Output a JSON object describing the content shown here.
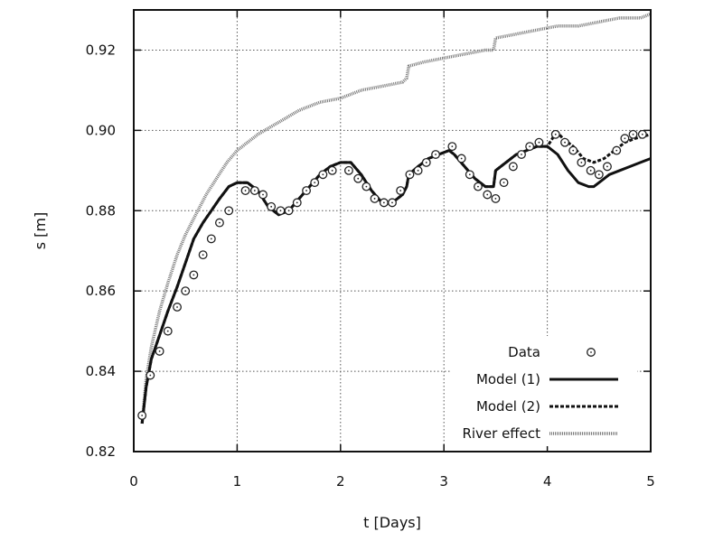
{
  "chart_data": {
    "type": "line",
    "title": "",
    "xlabel": "t [Days]",
    "ylabel": "s [m]",
    "xlim": [
      0,
      5
    ],
    "ylim": [
      0.82,
      0.93
    ],
    "xticks": [
      0,
      1,
      2,
      3,
      4,
      5
    ],
    "xtick_labels": [
      "0",
      "1",
      "2",
      "3",
      "4",
      "5"
    ],
    "yticks": [
      0.82,
      0.84,
      0.86,
      0.88,
      0.9,
      0.92
    ],
    "ytick_labels": [
      "0.82",
      "0.84",
      "0.86",
      "0.88",
      "0.90",
      "0.92"
    ],
    "grid": true,
    "legend_position": "bottom-right",
    "series": [
      {
        "name": "Data",
        "style": "circle-markers",
        "color": "#222222",
        "x": [
          0.08,
          0.16,
          0.25,
          0.33,
          0.42,
          0.5,
          0.58,
          0.67,
          0.75,
          0.83,
          0.92,
          1.08,
          1.17,
          1.25,
          1.33,
          1.42,
          1.5,
          1.58,
          1.67,
          1.75,
          1.83,
          1.92,
          2.08,
          2.17,
          2.25,
          2.33,
          2.42,
          2.5,
          2.58,
          2.67,
          2.75,
          2.83,
          2.92,
          3.08,
          3.17,
          3.25,
          3.33,
          3.42,
          3.5,
          3.58,
          3.67,
          3.75,
          3.83,
          3.92,
          4.08,
          4.17,
          4.25,
          4.33,
          4.42,
          4.5,
          4.58,
          4.67,
          4.75,
          4.83,
          4.92
        ],
        "y": [
          0.829,
          0.839,
          0.845,
          0.85,
          0.856,
          0.86,
          0.864,
          0.869,
          0.873,
          0.877,
          0.88,
          0.885,
          0.885,
          0.884,
          0.881,
          0.88,
          0.88,
          0.882,
          0.885,
          0.887,
          0.889,
          0.89,
          0.89,
          0.888,
          0.886,
          0.883,
          0.882,
          0.882,
          0.885,
          0.889,
          0.89,
          0.892,
          0.894,
          0.896,
          0.893,
          0.889,
          0.886,
          0.884,
          0.883,
          0.887,
          0.891,
          0.894,
          0.896,
          0.897,
          0.899,
          0.897,
          0.895,
          0.892,
          0.89,
          0.889,
          0.891,
          0.895,
          0.898,
          0.899,
          0.899
        ]
      },
      {
        "name": "Model (1)",
        "style": "solid",
        "color": "#111111",
        "x": [
          0.08,
          0.12,
          0.17,
          0.25,
          0.33,
          0.42,
          0.5,
          0.58,
          0.67,
          0.75,
          0.83,
          0.92,
          1.0,
          1.05,
          1.1,
          1.2,
          1.3,
          1.4,
          1.5,
          1.6,
          1.7,
          1.8,
          1.9,
          2.0,
          2.1,
          2.2,
          2.3,
          2.4,
          2.5,
          2.6,
          2.64,
          2.66,
          2.75,
          2.85,
          2.95,
          3.05,
          3.1,
          3.2,
          3.3,
          3.4,
          3.48,
          3.5,
          3.6,
          3.7,
          3.8,
          3.9,
          4.0,
          4.1,
          4.2,
          4.3,
          4.4,
          4.45,
          4.5,
          4.6,
          4.7,
          4.8,
          4.9,
          5.0
        ],
        "y": [
          0.827,
          0.836,
          0.843,
          0.849,
          0.855,
          0.861,
          0.867,
          0.873,
          0.877,
          0.88,
          0.883,
          0.886,
          0.887,
          0.887,
          0.887,
          0.885,
          0.881,
          0.879,
          0.88,
          0.883,
          0.886,
          0.889,
          0.891,
          0.892,
          0.892,
          0.889,
          0.885,
          0.882,
          0.882,
          0.884,
          0.886,
          0.889,
          0.891,
          0.893,
          0.894,
          0.895,
          0.894,
          0.891,
          0.888,
          0.886,
          0.886,
          0.89,
          0.892,
          0.894,
          0.895,
          0.896,
          0.896,
          0.894,
          0.89,
          0.887,
          0.886,
          0.886,
          0.887,
          0.889,
          0.89,
          0.891,
          0.892,
          0.893
        ]
      },
      {
        "name": "Model (2)",
        "style": "dashed",
        "color": "#111111",
        "x": [
          0.08,
          0.12,
          0.17,
          0.25,
          0.33,
          0.42,
          0.5,
          0.58,
          0.67,
          0.75,
          0.83,
          0.92,
          1.0,
          1.05,
          1.1,
          1.2,
          1.3,
          1.4,
          1.5,
          1.6,
          1.7,
          1.8,
          1.9,
          2.0,
          2.1,
          2.2,
          2.3,
          2.4,
          2.5,
          2.6,
          2.64,
          2.66,
          2.75,
          2.85,
          2.95,
          3.05,
          3.1,
          3.2,
          3.3,
          3.4,
          3.48,
          3.5,
          3.6,
          3.7,
          3.8,
          3.9,
          4.0,
          4.05,
          4.08,
          4.15,
          4.25,
          4.35,
          4.45,
          4.55,
          4.65,
          4.75,
          4.85,
          5.0
        ],
        "y": [
          0.827,
          0.836,
          0.843,
          0.849,
          0.855,
          0.861,
          0.867,
          0.873,
          0.877,
          0.88,
          0.883,
          0.886,
          0.887,
          0.887,
          0.887,
          0.885,
          0.881,
          0.879,
          0.88,
          0.883,
          0.886,
          0.889,
          0.891,
          0.892,
          0.892,
          0.889,
          0.885,
          0.882,
          0.882,
          0.884,
          0.886,
          0.889,
          0.891,
          0.893,
          0.894,
          0.895,
          0.894,
          0.891,
          0.888,
          0.886,
          0.886,
          0.89,
          0.892,
          0.894,
          0.895,
          0.896,
          0.896,
          0.898,
          0.9,
          0.898,
          0.896,
          0.893,
          0.892,
          0.893,
          0.895,
          0.897,
          0.898,
          0.899
        ]
      },
      {
        "name": "River effect",
        "style": "dotted",
        "color": "#777777",
        "x": [
          0.08,
          0.12,
          0.17,
          0.25,
          0.33,
          0.42,
          0.5,
          0.6,
          0.7,
          0.8,
          0.9,
          1.0,
          1.2,
          1.4,
          1.6,
          1.8,
          2.0,
          2.2,
          2.4,
          2.6,
          2.64,
          2.66,
          2.8,
          3.0,
          3.2,
          3.4,
          3.48,
          3.5,
          3.7,
          3.9,
          4.1,
          4.3,
          4.5,
          4.7,
          4.9,
          5.0
        ],
        "y": [
          0.827,
          0.838,
          0.846,
          0.855,
          0.862,
          0.869,
          0.874,
          0.879,
          0.884,
          0.888,
          0.892,
          0.895,
          0.899,
          0.902,
          0.905,
          0.907,
          0.908,
          0.91,
          0.911,
          0.912,
          0.913,
          0.916,
          0.917,
          0.918,
          0.919,
          0.92,
          0.92,
          0.923,
          0.924,
          0.925,
          0.926,
          0.926,
          0.927,
          0.928,
          0.928,
          0.929
        ]
      }
    ]
  }
}
